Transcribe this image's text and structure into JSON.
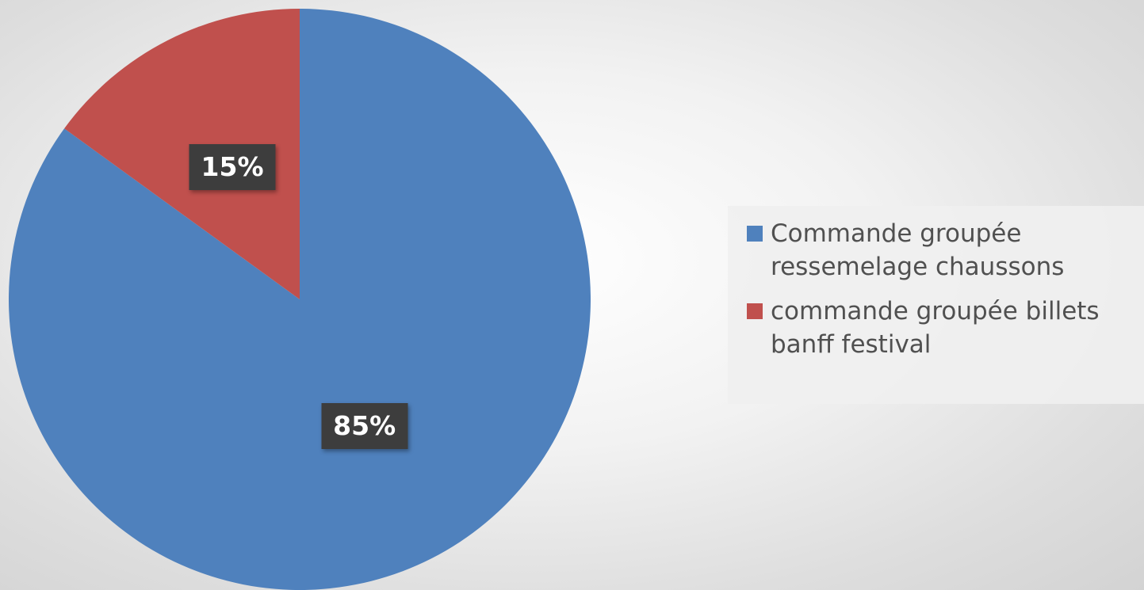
{
  "chart_data": {
    "type": "pie",
    "title": "",
    "categories": [
      "Commande groupée ressemelage chaussons",
      "commande groupée billets banff festival"
    ],
    "values": [
      85,
      15
    ],
    "data_labels": [
      "85%",
      "15%"
    ],
    "colors": [
      "#4f81bd",
      "#c0504d"
    ],
    "start_angle_deg": 0,
    "direction": "clockwise",
    "legend": {
      "position": "right",
      "entries": [
        "Commande groupée ressemelage chaussons",
        "commande groupée billets banff festival"
      ]
    }
  }
}
